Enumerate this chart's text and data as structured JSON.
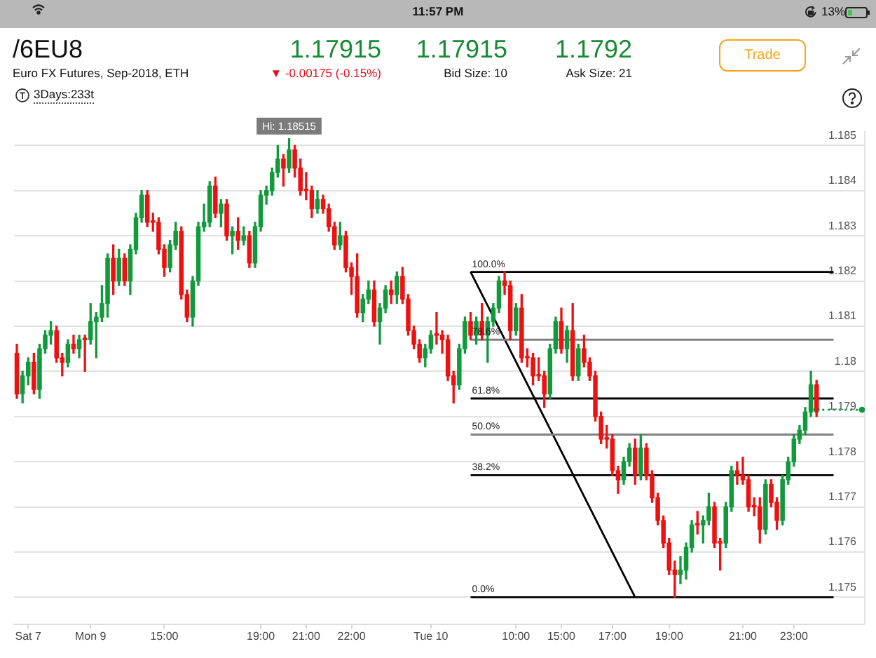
{
  "chart_data": {
    "type": "candlestick",
    "title": "/6EU8",
    "subtitle": "Euro FX Futures, Sep-2018, ETH",
    "annotations": [
      "11:57 PM",
      "13%",
      "1.17915",
      "▼ -0.00175 (-0.15%)",
      "1.17915",
      "Bid Size: 10",
      "1.1792",
      "Ask Size: 21",
      "Trade",
      "3Days:233t",
      {
        "text": "Hi: 1.18515",
        "y": 1.18515
      }
    ],
    "categories": [
      null,
      null,
      "Sat 7",
      null,
      null,
      null,
      null,
      null,
      null,
      null,
      null,
      null,
      null,
      "Mon 9",
      null,
      null,
      null,
      null,
      null,
      null,
      null,
      null,
      null,
      null,
      null,
      null,
      "15:00",
      null,
      null,
      null,
      null,
      null,
      null,
      null,
      null,
      null,
      null,
      null,
      null,
      null,
      null,
      null,
      null,
      "19:00",
      null,
      null,
      null,
      null,
      null,
      null,
      null,
      "21:00",
      null,
      null,
      null,
      null,
      null,
      null,
      null,
      "22:00",
      null,
      null,
      null,
      null,
      null,
      null,
      null,
      null,
      null,
      null,
      null,
      null,
      null,
      "Tue 10",
      null,
      null,
      null,
      null,
      null,
      null,
      null,
      null,
      null,
      null,
      null,
      null,
      null,
      null,
      "10:00",
      null,
      null,
      null,
      null,
      null,
      null,
      null,
      "15:00",
      null,
      null,
      null,
      null,
      null,
      null,
      null,
      null,
      "17:00",
      null,
      null,
      null,
      null,
      null,
      null,
      null,
      null,
      null,
      "19:00",
      null,
      null,
      null,
      null,
      null,
      null,
      null,
      null,
      null,
      null,
      null,
      null,
      "21:00",
      null,
      null,
      null,
      null,
      null,
      null,
      null,
      null,
      "23:00",
      null,
      null,
      null,
      null,
      null,
      null,
      null,
      null,
      null,
      null,
      null,
      null
    ],
    "ohlc": [
      [
        1.1804,
        1.1806,
        1.1794,
        1.1795
      ],
      [
        1.1795,
        1.18,
        1.1793,
        1.1799
      ],
      [
        1.1799,
        1.1803,
        1.1797,
        1.1802
      ],
      [
        1.1802,
        1.1804,
        1.1795,
        1.1796
      ],
      [
        1.1796,
        1.1806,
        1.1794,
        1.1805
      ],
      [
        1.1805,
        1.1809,
        1.1804,
        1.1808
      ],
      [
        1.1808,
        1.1811,
        1.1806,
        1.1809
      ],
      [
        1.1809,
        1.181,
        1.1802,
        1.1803
      ],
      [
        1.1803,
        1.1804,
        1.1799,
        1.1802
      ],
      [
        1.1802,
        1.1807,
        1.1801,
        1.1806
      ],
      [
        1.1806,
        1.1808,
        1.1804,
        1.1805
      ],
      [
        1.1805,
        1.1808,
        1.1803,
        1.1807
      ],
      [
        1.1807,
        1.1808,
        1.18,
        1.1807
      ],
      [
        1.1807,
        1.1815,
        1.1806,
        1.1811
      ],
      [
        1.1811,
        1.1813,
        1.1803,
        1.1812
      ],
      [
        1.1812,
        1.1819,
        1.1811,
        1.1815
      ],
      [
        1.1815,
        1.1826,
        1.1812,
        1.1825
      ],
      [
        1.1825,
        1.1828,
        1.1817,
        1.182
      ],
      [
        1.182,
        1.1827,
        1.1819,
        1.1825
      ],
      [
        1.1825,
        1.1826,
        1.1819,
        1.182
      ],
      [
        1.182,
        1.1828,
        1.1817,
        1.1827
      ],
      [
        1.1827,
        1.1835,
        1.1826,
        1.1834
      ],
      [
        1.1834,
        1.184,
        1.1833,
        1.1839
      ],
      [
        1.1839,
        1.184,
        1.1832,
        1.1833
      ],
      [
        1.1833,
        1.1835,
        1.1831,
        1.1833
      ],
      [
        1.1833,
        1.1834,
        1.1826,
        1.1827
      ],
      [
        1.1827,
        1.1828,
        1.1821,
        1.1823
      ],
      [
        1.1823,
        1.1829,
        1.1822,
        1.1828
      ],
      [
        1.1828,
        1.1833,
        1.1827,
        1.1831
      ],
      [
        1.1831,
        1.1832,
        1.1816,
        1.1817
      ],
      [
        1.1817,
        1.1818,
        1.1811,
        1.1812
      ],
      [
        1.1812,
        1.1821,
        1.181,
        1.182
      ],
      [
        1.182,
        1.1833,
        1.1819,
        1.1832
      ],
      [
        1.1832,
        1.1837,
        1.1831,
        1.1833
      ],
      [
        1.1833,
        1.1842,
        1.1832,
        1.1841
      ],
      [
        1.1841,
        1.1843,
        1.1834,
        1.1835
      ],
      [
        1.1835,
        1.1838,
        1.1832,
        1.1837
      ],
      [
        1.1837,
        1.1838,
        1.1829,
        1.183
      ],
      [
        1.183,
        1.1832,
        1.1826,
        1.1831
      ],
      [
        1.1831,
        1.1834,
        1.1827,
        1.1829
      ],
      [
        1.1829,
        1.1832,
        1.1828,
        1.183
      ],
      [
        1.183,
        1.1831,
        1.1823,
        1.1824
      ],
      [
        1.1824,
        1.1833,
        1.1823,
        1.1832
      ],
      [
        1.1832,
        1.184,
        1.1831,
        1.1839
      ],
      [
        1.1839,
        1.1841,
        1.1837,
        1.184
      ],
      [
        1.184,
        1.1845,
        1.1839,
        1.1844
      ],
      [
        1.1844,
        1.185,
        1.1843,
        1.1847
      ],
      [
        1.1847,
        1.1848,
        1.1841,
        1.1845
      ],
      [
        1.1845,
        1.18515,
        1.1844,
        1.1849
      ],
      [
        1.1849,
        1.185,
        1.1843,
        1.1845
      ],
      [
        1.1845,
        1.1847,
        1.1839,
        1.184
      ],
      [
        1.184,
        1.1844,
        1.1838,
        1.184
      ],
      [
        1.184,
        1.1841,
        1.1834,
        1.1836
      ],
      [
        1.1836,
        1.184,
        1.1835,
        1.1838
      ],
      [
        1.1838,
        1.1839,
        1.1835,
        1.1836
      ],
      [
        1.1836,
        1.1837,
        1.1831,
        1.1832
      ],
      [
        1.1832,
        1.1833,
        1.1827,
        1.1828
      ],
      [
        1.1828,
        1.1833,
        1.1827,
        1.183
      ],
      [
        1.183,
        1.1831,
        1.1822,
        1.1823
      ],
      [
        1.1823,
        1.1824,
        1.1817,
        1.1821
      ],
      [
        1.1821,
        1.1826,
        1.1812,
        1.1813
      ],
      [
        1.1813,
        1.1817,
        1.1811,
        1.1816
      ],
      [
        1.1816,
        1.182,
        1.1815,
        1.1818
      ],
      [
        1.1818,
        1.182,
        1.181,
        1.1811
      ],
      [
        1.1811,
        1.1815,
        1.1806,
        1.1814
      ],
      [
        1.1814,
        1.1819,
        1.1813,
        1.1818
      ],
      [
        1.1818,
        1.182,
        1.1815,
        1.1817
      ],
      [
        1.1817,
        1.1822,
        1.1815,
        1.1821
      ],
      [
        1.1821,
        1.1823,
        1.1815,
        1.1816
      ],
      [
        1.1816,
        1.1817,
        1.1808,
        1.1809
      ],
      [
        1.1809,
        1.181,
        1.1805,
        1.1806
      ],
      [
        1.1806,
        1.1807,
        1.1802,
        1.1803
      ],
      [
        1.1803,
        1.1806,
        1.1801,
        1.1805
      ],
      [
        1.1805,
        1.1809,
        1.1804,
        1.1808
      ],
      [
        1.1808,
        1.1813,
        1.1806,
        1.1808
      ],
      [
        1.1808,
        1.1809,
        1.1804,
        1.1807
      ],
      [
        1.1807,
        1.1808,
        1.1798,
        1.1799
      ],
      [
        1.1799,
        1.18,
        1.1793,
        1.1797
      ],
      [
        1.1797,
        1.1806,
        1.1796,
        1.1805
      ],
      [
        1.1805,
        1.1812,
        1.1804,
        1.1811
      ],
      [
        1.1811,
        1.1813,
        1.1807,
        1.1808
      ],
      [
        1.1808,
        1.1812,
        1.1806,
        1.1811
      ],
      [
        1.1811,
        1.1815,
        1.1807,
        1.1808
      ],
      [
        1.1808,
        1.1812,
        1.1802,
        1.1811
      ],
      [
        1.1811,
        1.1815,
        1.181,
        1.1814
      ],
      [
        1.1814,
        1.1821,
        1.1813,
        1.182
      ],
      [
        1.182,
        1.1822,
        1.1817,
        1.1819
      ],
      [
        1.1819,
        1.182,
        1.1807,
        1.1809
      ],
      [
        1.1809,
        1.1815,
        1.1808,
        1.1814
      ],
      [
        1.1814,
        1.1817,
        1.1802,
        1.1803
      ],
      [
        1.1803,
        1.1805,
        1.1801,
        1.1803
      ],
      [
        1.1803,
        1.1804,
        1.1797,
        1.1799
      ],
      [
        1.1799,
        1.1803,
        1.1798,
        1.1799
      ],
      [
        1.1799,
        1.18,
        1.1792,
        1.1795
      ],
      [
        1.1795,
        1.1806,
        1.1794,
        1.1805
      ],
      [
        1.1805,
        1.1812,
        1.1804,
        1.1811
      ],
      [
        1.1811,
        1.1814,
        1.1804,
        1.1805
      ],
      [
        1.1805,
        1.181,
        1.1802,
        1.1809
      ],
      [
        1.1809,
        1.1815,
        1.1798,
        1.1799
      ],
      [
        1.1799,
        1.1806,
        1.1798,
        1.1805
      ],
      [
        1.1805,
        1.1808,
        1.1801,
        1.1802
      ],
      [
        1.1802,
        1.1803,
        1.1798,
        1.1799
      ],
      [
        1.1799,
        1.18,
        1.1789,
        1.179
      ],
      [
        1.179,
        1.1791,
        1.1784,
        1.1785
      ],
      [
        1.1785,
        1.1788,
        1.1783,
        1.1785
      ],
      [
        1.1785,
        1.1786,
        1.1777,
        1.1778
      ],
      [
        1.1778,
        1.1779,
        1.1773,
        1.1776
      ],
      [
        1.1776,
        1.1781,
        1.1775,
        1.178
      ],
      [
        1.178,
        1.1784,
        1.1779,
        1.1783
      ],
      [
        1.1783,
        1.1785,
        1.1775,
        1.1777
      ],
      [
        1.1777,
        1.1786,
        1.1776,
        1.1783
      ],
      [
        1.1783,
        1.1784,
        1.1776,
        1.1777
      ],
      [
        1.1777,
        1.1778,
        1.1771,
        1.1772
      ],
      [
        1.1772,
        1.1773,
        1.1766,
        1.1767
      ],
      [
        1.1767,
        1.1768,
        1.1761,
        1.1762
      ],
      [
        1.1762,
        1.1763,
        1.1755,
        1.1756
      ],
      [
        1.1756,
        1.1758,
        1.175,
        1.1755
      ],
      [
        1.1755,
        1.1759,
        1.1753,
        1.1756
      ],
      [
        1.1756,
        1.1762,
        1.1754,
        1.1761
      ],
      [
        1.1761,
        1.1767,
        1.176,
        1.1766
      ],
      [
        1.1766,
        1.1769,
        1.1764,
        1.1766
      ],
      [
        1.1766,
        1.1768,
        1.1762,
        1.1767
      ],
      [
        1.1767,
        1.1773,
        1.1766,
        1.177
      ],
      [
        1.177,
        1.1771,
        1.1761,
        1.1762
      ],
      [
        1.1762,
        1.1763,
        1.1756,
        1.1762
      ],
      [
        1.1762,
        1.1771,
        1.1761,
        1.177
      ],
      [
        1.177,
        1.1779,
        1.1769,
        1.1778
      ],
      [
        1.1778,
        1.178,
        1.1775,
        1.1777
      ],
      [
        1.1777,
        1.1781,
        1.1775,
        1.1776
      ],
      [
        1.1776,
        1.1777,
        1.1769,
        1.177
      ],
      [
        1.177,
        1.1772,
        1.1768,
        1.177
      ],
      [
        1.177,
        1.1772,
        1.1762,
        1.1765
      ],
      [
        1.1765,
        1.1776,
        1.1764,
        1.1775
      ],
      [
        1.1775,
        1.1776,
        1.177,
        1.1771
      ],
      [
        1.1771,
        1.1772,
        1.1765,
        1.1767
      ],
      [
        1.1767,
        1.1777,
        1.1766,
        1.1776
      ],
      [
        1.1776,
        1.1781,
        1.1775,
        1.178
      ],
      [
        1.178,
        1.1786,
        1.1779,
        1.1785
      ],
      [
        1.1785,
        1.1788,
        1.1784,
        1.1787
      ],
      [
        1.1787,
        1.1792,
        1.1786,
        1.1791
      ],
      [
        1.1791,
        1.18,
        1.179,
        1.1797
      ],
      [
        1.1797,
        1.1798,
        1.179,
        1.17915
      ],
      null,
      null,
      null,
      null,
      null,
      null,
      null,
      null
    ],
    "colors": [
      "#ee1111",
      "#119a3c",
      "#119a3c",
      "#ee1111",
      "#119a3c",
      "#119a3c",
      "#119a3c",
      "#ee1111",
      "#ee1111",
      "#119a3c",
      "#ee1111",
      "#119a3c",
      "#ee1111",
      "#119a3c",
      "#119a3c",
      "#119a3c",
      "#119a3c",
      "#ee1111",
      "#119a3c",
      "#ee1111",
      "#119a3c",
      "#119a3c",
      "#119a3c",
      "#ee1111",
      "#ee1111",
      "#ee1111",
      "#ee1111",
      "#119a3c",
      "#119a3c",
      "#ee1111",
      "#ee1111",
      "#119a3c",
      "#119a3c",
      "#119a3c",
      "#119a3c",
      "#ee1111",
      "#119a3c",
      "#ee1111",
      "#119a3c",
      "#ee1111",
      "#119a3c",
      "#ee1111",
      "#119a3c",
      "#119a3c",
      "#119a3c",
      "#119a3c",
      "#119a3c",
      "#ee1111",
      "#119a3c",
      "#ee1111",
      "#ee1111",
      "#ee1111",
      "#ee1111",
      "#119a3c",
      "#ee1111",
      "#ee1111",
      "#ee1111",
      "#119a3c",
      "#ee1111",
      "#ee1111",
      "#ee1111",
      "#119a3c",
      "#119a3c",
      "#ee1111",
      "#119a3c",
      "#119a3c",
      "#ee1111",
      "#119a3c",
      "#ee1111",
      "#ee1111",
      "#ee1111",
      "#ee1111",
      "#119a3c",
      "#119a3c",
      "#ee1111",
      "#ee1111",
      "#ee1111",
      "#ee1111",
      "#119a3c",
      "#119a3c",
      "#ee1111",
      "#119a3c",
      "#ee1111",
      "#119a3c",
      "#119a3c",
      "#119a3c",
      "#ee1111",
      "#ee1111",
      "#119a3c",
      "#ee1111",
      "#ee1111",
      "#ee1111",
      "#ee1111",
      "#ee1111",
      "#119a3c",
      "#119a3c",
      "#ee1111",
      "#119a3c",
      "#ee1111",
      "#119a3c",
      "#ee1111",
      "#ee1111",
      "#ee1111",
      "#ee1111",
      "#ee1111",
      "#ee1111",
      "#ee1111",
      "#119a3c",
      "#119a3c",
      "#ee1111",
      "#119a3c",
      "#ee1111",
      "#ee1111",
      "#ee1111",
      "#ee1111",
      "#ee1111",
      "#ee1111",
      "#119a3c",
      "#119a3c",
      "#119a3c",
      "#ee1111",
      "#119a3c",
      "#119a3c",
      "#ee1111",
      "#ee1111",
      "#119a3c",
      "#119a3c",
      "#ee1111",
      "#ee1111",
      "#ee1111",
      "#ee1111",
      "#ee1111",
      "#119a3c",
      "#ee1111",
      "#ee1111",
      "#119a3c",
      "#119a3c",
      "#119a3c",
      "#119a3c",
      "#119a3c",
      "#119a3c",
      "#ee1111",
      null,
      null,
      null,
      null,
      null,
      null,
      null,
      null
    ],
    "series": [
      {
        "type": "line",
        "name": "100.0%",
        "color": "#000000",
        "values": [
          null,
          null,
          null,
          null,
          null,
          null,
          null,
          null,
          null,
          null,
          null,
          null,
          null,
          null,
          null,
          null,
          null,
          null,
          null,
          null,
          null,
          null,
          null,
          null,
          null,
          null,
          null,
          null,
          null,
          null,
          null,
          null,
          null,
          null,
          null,
          null,
          null,
          null,
          null,
          null,
          null,
          null,
          null,
          null,
          null,
          null,
          null,
          null,
          null,
          null,
          null,
          null,
          null,
          null,
          null,
          null,
          null,
          null,
          null,
          null,
          null,
          null,
          null,
          null,
          null,
          null,
          null,
          null,
          null,
          null,
          null,
          null,
          null,
          null,
          null,
          null,
          null,
          null,
          null,
          null,
          1.1822,
          null,
          null,
          null,
          null,
          null,
          null,
          null,
          null,
          null,
          null,
          null,
          null,
          null,
          null,
          null,
          null,
          null,
          null,
          null,
          null,
          null,
          null,
          null,
          null,
          null,
          null,
          null,
          null,
          null,
          null,
          null,
          null,
          null,
          null,
          null,
          null,
          null,
          null,
          null,
          null,
          null,
          null,
          null,
          null,
          null,
          null,
          null,
          null,
          null,
          null,
          null,
          null,
          null,
          null,
          null,
          null,
          null,
          null,
          null,
          null,
          null,
          null,
          null,
          1.1822,
          null,
          null,
          null,
          null,
          null
        ]
      },
      {
        "type": "line",
        "name": "78.6%",
        "color": "#808080",
        "values": [
          null,
          null,
          null,
          null,
          null,
          null,
          null,
          null,
          null,
          null,
          null,
          null,
          null,
          null,
          null,
          null,
          null,
          null,
          null,
          null,
          null,
          null,
          null,
          null,
          null,
          null,
          null,
          null,
          null,
          null,
          null,
          null,
          null,
          null,
          null,
          null,
          null,
          null,
          null,
          null,
          null,
          null,
          null,
          null,
          null,
          null,
          null,
          null,
          null,
          null,
          null,
          null,
          null,
          null,
          null,
          null,
          null,
          null,
          null,
          null,
          null,
          null,
          null,
          null,
          null,
          null,
          null,
          null,
          null,
          null,
          null,
          null,
          null,
          null,
          null,
          null,
          null,
          null,
          null,
          null,
          1.1807,
          null,
          null,
          null,
          null,
          null,
          null,
          null,
          null,
          null,
          null,
          null,
          null,
          null,
          null,
          null,
          null,
          null,
          null,
          null,
          null,
          null,
          null,
          null,
          null,
          null,
          null,
          null,
          null,
          null,
          null,
          null,
          null,
          null,
          null,
          null,
          null,
          null,
          null,
          null,
          null,
          null,
          null,
          null,
          null,
          null,
          null,
          null,
          null,
          null,
          null,
          null,
          null,
          null,
          null,
          null,
          null,
          null,
          null,
          null,
          null,
          null,
          null,
          null,
          1.1807,
          null,
          null,
          null,
          null,
          null
        ]
      },
      {
        "type": "line",
        "name": "61.8%",
        "color": "#000000",
        "values": [
          null,
          null,
          null,
          null,
          null,
          null,
          null,
          null,
          null,
          null,
          null,
          null,
          null,
          null,
          null,
          null,
          null,
          null,
          null,
          null,
          null,
          null,
          null,
          null,
          null,
          null,
          null,
          null,
          null,
          null,
          null,
          null,
          null,
          null,
          null,
          null,
          null,
          null,
          null,
          null,
          null,
          null,
          null,
          null,
          null,
          null,
          null,
          null,
          null,
          null,
          null,
          null,
          null,
          null,
          null,
          null,
          null,
          null,
          null,
          null,
          null,
          null,
          null,
          null,
          null,
          null,
          null,
          null,
          null,
          null,
          null,
          null,
          null,
          null,
          null,
          null,
          null,
          null,
          null,
          null,
          1.1794,
          null,
          null,
          null,
          null,
          null,
          null,
          null,
          null,
          null,
          null,
          null,
          null,
          null,
          null,
          null,
          null,
          null,
          null,
          null,
          null,
          null,
          null,
          null,
          null,
          null,
          null,
          null,
          null,
          null,
          null,
          null,
          null,
          null,
          null,
          null,
          null,
          null,
          null,
          null,
          null,
          null,
          null,
          null,
          null,
          null,
          null,
          null,
          null,
          null,
          null,
          null,
          null,
          null,
          null,
          null,
          null,
          null,
          null,
          null,
          null,
          null,
          null,
          null,
          1.1794,
          null,
          null,
          null,
          null,
          null
        ]
      },
      {
        "type": "line",
        "name": "50.0%",
        "color": "#808080",
        "values": [
          null,
          null,
          null,
          null,
          null,
          null,
          null,
          null,
          null,
          null,
          null,
          null,
          null,
          null,
          null,
          null,
          null,
          null,
          null,
          null,
          null,
          null,
          null,
          null,
          null,
          null,
          null,
          null,
          null,
          null,
          null,
          null,
          null,
          null,
          null,
          null,
          null,
          null,
          null,
          null,
          null,
          null,
          null,
          null,
          null,
          null,
          null,
          null,
          null,
          null,
          null,
          null,
          null,
          null,
          null,
          null,
          null,
          null,
          null,
          null,
          null,
          null,
          null,
          null,
          null,
          null,
          null,
          null,
          null,
          null,
          null,
          null,
          null,
          null,
          null,
          null,
          null,
          null,
          null,
          null,
          1.1786,
          null,
          null,
          null,
          null,
          null,
          null,
          null,
          null,
          null,
          null,
          null,
          null,
          null,
          null,
          null,
          null,
          null,
          null,
          null,
          null,
          null,
          null,
          null,
          null,
          null,
          null,
          null,
          null,
          null,
          null,
          null,
          null,
          null,
          null,
          null,
          null,
          null,
          null,
          null,
          null,
          null,
          null,
          null,
          null,
          null,
          null,
          null,
          null,
          null,
          null,
          null,
          null,
          null,
          null,
          null,
          null,
          null,
          null,
          null,
          null,
          null,
          null,
          null,
          1.1786,
          null,
          null,
          null,
          null,
          null
        ]
      },
      {
        "type": "line",
        "name": "38.2%",
        "color": "#000000",
        "values": [
          null,
          null,
          null,
          null,
          null,
          null,
          null,
          null,
          null,
          null,
          null,
          null,
          null,
          null,
          null,
          null,
          null,
          null,
          null,
          null,
          null,
          null,
          null,
          null,
          null,
          null,
          null,
          null,
          null,
          null,
          null,
          null,
          null,
          null,
          null,
          null,
          null,
          null,
          null,
          null,
          null,
          null,
          null,
          null,
          null,
          null,
          null,
          null,
          null,
          null,
          null,
          null,
          null,
          null,
          null,
          null,
          null,
          null,
          null,
          null,
          null,
          null,
          null,
          null,
          null,
          null,
          null,
          null,
          null,
          null,
          null,
          null,
          null,
          null,
          null,
          null,
          null,
          null,
          null,
          null,
          1.1777,
          null,
          null,
          null,
          null,
          null,
          null,
          null,
          null,
          null,
          null,
          null,
          null,
          null,
          null,
          null,
          null,
          null,
          null,
          null,
          null,
          null,
          null,
          null,
          null,
          null,
          null,
          null,
          null,
          null,
          null,
          null,
          null,
          null,
          null,
          null,
          null,
          null,
          null,
          null,
          null,
          null,
          null,
          null,
          null,
          null,
          null,
          null,
          null,
          null,
          null,
          null,
          null,
          null,
          null,
          null,
          null,
          null,
          null,
          null,
          null,
          null,
          null,
          null,
          1.1777,
          null,
          null,
          null,
          null,
          null
        ]
      },
      {
        "type": "line",
        "name": "0.0%",
        "color": "#000000",
        "values": [
          null,
          null,
          null,
          null,
          null,
          null,
          null,
          null,
          null,
          null,
          null,
          null,
          null,
          null,
          null,
          null,
          null,
          null,
          null,
          null,
          null,
          null,
          null,
          null,
          null,
          null,
          null,
          null,
          null,
          null,
          null,
          null,
          null,
          null,
          null,
          null,
          null,
          null,
          null,
          null,
          null,
          null,
          null,
          null,
          null,
          null,
          null,
          null,
          null,
          null,
          null,
          null,
          null,
          null,
          null,
          null,
          null,
          null,
          null,
          null,
          null,
          null,
          null,
          null,
          null,
          null,
          null,
          null,
          null,
          null,
          null,
          null,
          null,
          null,
          null,
          null,
          null,
          null,
          null,
          null,
          1.175,
          null,
          null,
          null,
          null,
          null,
          null,
          null,
          null,
          null,
          null,
          null,
          null,
          null,
          null,
          null,
          null,
          null,
          null,
          null,
          null,
          null,
          null,
          null,
          null,
          null,
          null,
          null,
          null,
          null,
          null,
          null,
          null,
          null,
          null,
          null,
          null,
          null,
          null,
          null,
          null,
          null,
          null,
          null,
          null,
          null,
          null,
          null,
          null,
          null,
          null,
          null,
          null,
          null,
          null,
          null,
          null,
          null,
          null,
          null,
          null,
          null,
          null,
          null,
          1.175,
          null,
          null,
          null,
          null,
          null
        ]
      },
      {
        "type": "line",
        "color": "#000000",
        "values": [
          null,
          null,
          null,
          null,
          null,
          null,
          null,
          null,
          null,
          null,
          null,
          null,
          null,
          null,
          null,
          null,
          null,
          null,
          null,
          null,
          null,
          null,
          null,
          null,
          null,
          null,
          null,
          null,
          null,
          null,
          null,
          null,
          null,
          null,
          null,
          null,
          null,
          null,
          null,
          null,
          null,
          null,
          null,
          null,
          null,
          null,
          null,
          null,
          null,
          null,
          null,
          null,
          null,
          null,
          null,
          null,
          null,
          null,
          null,
          null,
          null,
          null,
          null,
          null,
          null,
          null,
          null,
          null,
          null,
          null,
          null,
          null,
          null,
          null,
          null,
          null,
          null,
          null,
          null,
          null,
          1.1822,
          null,
          null,
          null,
          null,
          null,
          null,
          null,
          null,
          null,
          null,
          null,
          null,
          null,
          null,
          null,
          null,
          null,
          null,
          null,
          null,
          null,
          null,
          null,
          null,
          null,
          null,
          null,
          null,
          1.175,
          null,
          null,
          null,
          null,
          null,
          null,
          null,
          null,
          null,
          null,
          null,
          null,
          null,
          null,
          null,
          null,
          null,
          null,
          null,
          null,
          null,
          null,
          null,
          null,
          null,
          null,
          null,
          null,
          null,
          null,
          null,
          null,
          null,
          null,
          null,
          null,
          null,
          null,
          null,
          null
        ]
      },
      {
        "type": "line",
        "color": "#119a3c",
        "line_style": "dotted",
        "marker": "circle",
        "values": [
          null,
          null,
          null,
          null,
          null,
          null,
          null,
          null,
          null,
          null,
          null,
          null,
          null,
          null,
          null,
          null,
          null,
          null,
          null,
          null,
          null,
          null,
          null,
          null,
          null,
          null,
          null,
          null,
          null,
          null,
          null,
          null,
          null,
          null,
          null,
          null,
          null,
          null,
          null,
          null,
          null,
          null,
          null,
          null,
          null,
          null,
          null,
          null,
          null,
          null,
          null,
          null,
          null,
          null,
          null,
          null,
          null,
          null,
          null,
          null,
          null,
          null,
          null,
          null,
          null,
          null,
          null,
          null,
          null,
          null,
          null,
          null,
          null,
          null,
          null,
          null,
          null,
          null,
          null,
          null,
          null,
          null,
          null,
          null,
          null,
          null,
          null,
          null,
          null,
          null,
          null,
          null,
          null,
          null,
          null,
          null,
          null,
          null,
          null,
          null,
          null,
          null,
          null,
          null,
          null,
          null,
          null,
          null,
          null,
          null,
          null,
          null,
          null,
          null,
          null,
          null,
          null,
          null,
          null,
          null,
          null,
          null,
          null,
          null,
          null,
          null,
          null,
          null,
          null,
          null,
          null,
          null,
          null,
          null,
          null,
          null,
          null,
          null,
          null,
          null,
          null,
          1.17915,
          null,
          null,
          null,
          null,
          null,
          null,
          null,
          1.17915
        ]
      }
    ],
    "ylim": [
      1.1744,
      1.1853
    ],
    "yticks": [
      1.175,
      1.176,
      1.177,
      1.178,
      1.179,
      1.18,
      1.181,
      1.182,
      1.183,
      1.184,
      1.185
    ],
    "grid": "y"
  }
}
